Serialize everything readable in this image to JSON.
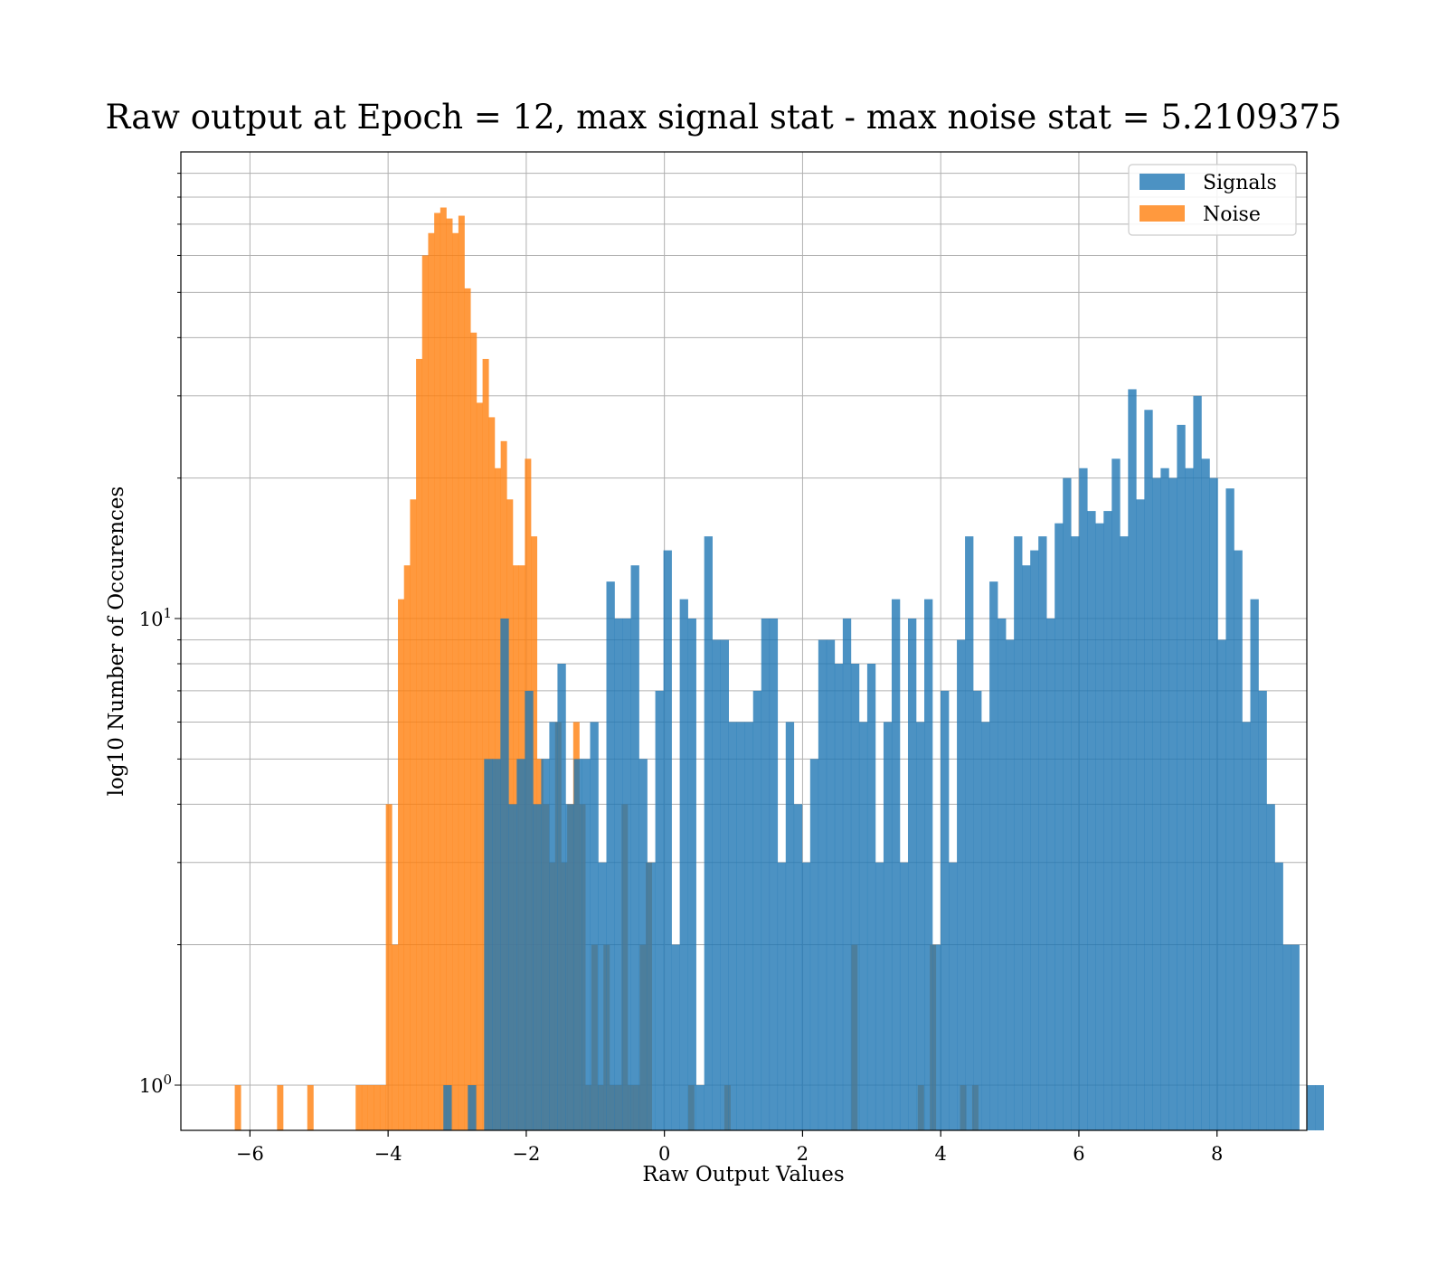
{
  "chart_data": {
    "type": "bar",
    "title": "Raw output at Epoch = 12, max signal stat - max noise stat = 5.2109375",
    "xlabel": "Raw Output Values",
    "ylabel": "log10 Number of Occurences",
    "yscale": "log",
    "xlim": [
      -7.0,
      9.3
    ],
    "ylim": [
      0.8,
      100
    ],
    "xticks": [
      -6,
      -4,
      -2,
      0,
      2,
      4,
      6,
      8
    ],
    "xtick_labels": [
      "−6",
      "−4",
      "−2",
      "0",
      "2",
      "4",
      "6",
      "8"
    ],
    "yticks": [
      {
        "value": 1,
        "base": "10",
        "exp": "0"
      },
      {
        "value": 10,
        "base": "10",
        "exp": "1"
      }
    ],
    "grid": true,
    "legend_position": "top-right",
    "series": [
      {
        "name": "Signals",
        "color": "#1f77b4",
        "opacity": 0.8,
        "bin_start": -3.2,
        "bin_width": 0.118,
        "counts": [
          1,
          0,
          0,
          1,
          0,
          5,
          5,
          10,
          4,
          5,
          7,
          4,
          5,
          6,
          8,
          4,
          5,
          5,
          6,
          3,
          12,
          10,
          10,
          13,
          5,
          3,
          7,
          14,
          2,
          11,
          10,
          1,
          15,
          9,
          9,
          6,
          6,
          6,
          7,
          10,
          10,
          3,
          6,
          4,
          3,
          5,
          9,
          9,
          8,
          10,
          8,
          6,
          8,
          3,
          6,
          11,
          3,
          10,
          6,
          11,
          2,
          7,
          3,
          9,
          15,
          7,
          6,
          12,
          10,
          9,
          15,
          13,
          14,
          15,
          10,
          16,
          20,
          15,
          21,
          17,
          16,
          17,
          22,
          15,
          31,
          18,
          28,
          20,
          21,
          20,
          26,
          21,
          30,
          22,
          20,
          9,
          19,
          14,
          6,
          11,
          7,
          4,
          3,
          2,
          2,
          0,
          1,
          1
        ]
      },
      {
        "name": "Noise",
        "color": "#ff7f0e",
        "opacity": 0.8,
        "bin_start": -6.22,
        "bin_width": 0.0875,
        "counts": [
          1,
          0,
          0,
          0,
          0,
          0,
          0,
          1,
          0,
          0,
          0,
          0,
          1,
          0,
          0,
          0,
          0,
          0,
          0,
          0,
          1,
          1,
          1,
          1,
          1,
          4,
          2,
          11,
          13,
          18,
          36,
          60,
          67,
          74,
          76,
          72,
          67,
          73,
          51,
          41,
          29,
          36,
          27,
          21,
          24,
          18,
          13,
          13,
          22,
          15,
          5,
          4,
          3,
          6,
          3,
          4,
          6,
          4,
          1,
          2,
          1,
          2,
          1,
          1,
          4,
          1,
          1,
          2,
          3,
          0,
          0,
          0,
          0,
          0,
          0,
          1,
          0,
          0,
          0,
          0,
          0,
          1,
          0,
          0,
          0,
          0,
          0,
          0,
          0,
          0,
          0,
          0,
          0,
          0,
          0,
          0,
          0,
          0,
          0,
          0,
          0,
          0,
          2,
          0,
          0,
          0,
          0,
          0,
          0,
          0,
          0,
          0,
          0,
          1,
          0,
          2,
          0,
          0,
          0,
          0,
          1,
          0,
          1
        ]
      }
    ]
  }
}
